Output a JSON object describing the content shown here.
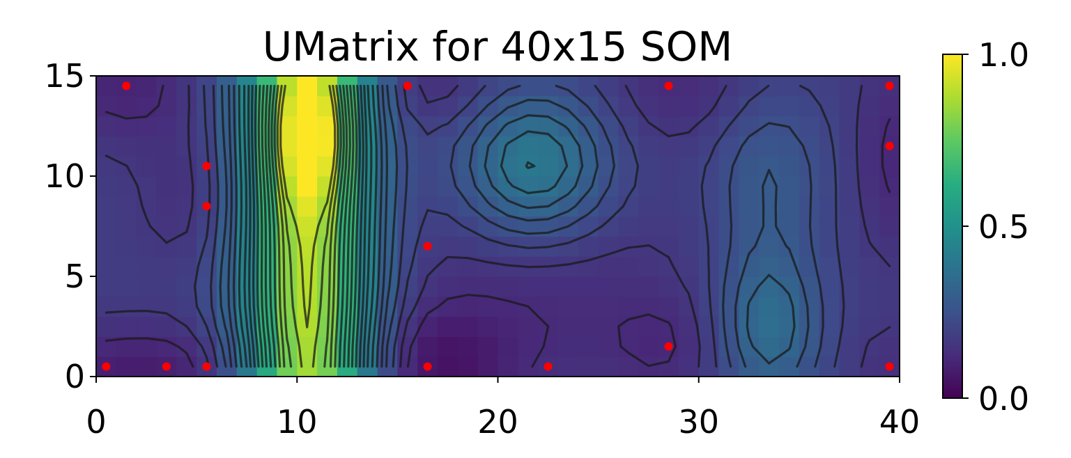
{
  "chart_data": {
    "type": "heatmap",
    "title": "UMatrix for 40x15 SOM",
    "xlabel": "",
    "ylabel": "",
    "xlim": [
      0,
      40
    ],
    "ylim": [
      0,
      15
    ],
    "x_ticks": [
      "0",
      "10",
      "20",
      "30",
      "40"
    ],
    "y_ticks": [
      "0",
      "5",
      "10",
      "15"
    ],
    "grid": false,
    "grid_size": {
      "cols": 40,
      "rows": 15
    },
    "colormap": "viridis",
    "colorbar": {
      "range": [
        0,
        1
      ],
      "ticks": [
        "0.0",
        "0.5",
        "1.0"
      ],
      "placement": "right"
    },
    "contour_color": "#1a1a1a",
    "umatrix_model": {
      "base": 0.18,
      "bumps": [
        {
          "cx": 10.5,
          "cy": 7.5,
          "sx": 2.2,
          "sy": 60,
          "amp": 0.72
        },
        {
          "cx": 10.6,
          "cy": 12.0,
          "sx": 1.2,
          "sy": 2.2,
          "amp": 0.22
        },
        {
          "cx": 21.8,
          "cy": 10.5,
          "sx": 2.6,
          "sy": 2.6,
          "amp": 0.24
        },
        {
          "cx": 33.5,
          "cy": 2.5,
          "sx": 1.8,
          "sy": 2.8,
          "amp": 0.18
        },
        {
          "cx": 33.5,
          "cy": 10.0,
          "sx": 2.0,
          "sy": 3.0,
          "amp": 0.1
        },
        {
          "cx": 1.5,
          "cy": 14.5,
          "sx": 2.5,
          "sy": 2.0,
          "amp": -0.08
        },
        {
          "cx": 2.5,
          "cy": 0.3,
          "sx": 5.0,
          "sy": 1.6,
          "amp": -0.1
        },
        {
          "cx": 5.0,
          "cy": 9.0,
          "sx": 2.0,
          "sy": 2.5,
          "amp": -0.05
        },
        {
          "cx": 17.0,
          "cy": 0.5,
          "sx": 2.5,
          "sy": 2.0,
          "amp": -0.11
        },
        {
          "cx": 16.5,
          "cy": 14.5,
          "sx": 2.2,
          "sy": 1.5,
          "amp": -0.06
        },
        {
          "cx": 22.0,
          "cy": 4.0,
          "sx": 5.0,
          "sy": 4.0,
          "amp": -0.06
        },
        {
          "cx": 29.0,
          "cy": 14.5,
          "sx": 2.5,
          "sy": 2.0,
          "amp": -0.06
        },
        {
          "cx": 28.5,
          "cy": 1.5,
          "sx": 2.0,
          "sy": 1.8,
          "amp": -0.05
        },
        {
          "cx": 39.5,
          "cy": 11.0,
          "sx": 1.2,
          "sy": 3.5,
          "amp": -0.07
        },
        {
          "cx": 39.5,
          "cy": 0.5,
          "sx": 1.5,
          "sy": 1.5,
          "amp": -0.04
        }
      ]
    },
    "contour_levels": [
      0.12,
      0.16,
      0.2,
      0.24,
      0.28,
      0.32,
      0.36,
      0.4,
      0.44,
      0.48,
      0.52,
      0.56,
      0.6,
      0.64,
      0.68,
      0.72,
      0.76,
      0.8,
      0.84,
      0.88
    ],
    "series": [
      {
        "type": "scatter",
        "color": "#ff0000",
        "points": [
          [
            0.5,
            0.5
          ],
          [
            3.5,
            0.5
          ],
          [
            5.5,
            0.5
          ],
          [
            16.5,
            0.5
          ],
          [
            22.5,
            0.5
          ],
          [
            39.5,
            0.5
          ],
          [
            28.5,
            1.5
          ],
          [
            16.5,
            6.5
          ],
          [
            5.5,
            8.5
          ],
          [
            5.5,
            10.5
          ],
          [
            39.5,
            11.5
          ],
          [
            1.5,
            14.5
          ],
          [
            15.5,
            14.5
          ],
          [
            28.5,
            14.5
          ],
          [
            39.5,
            14.5
          ]
        ]
      }
    ]
  }
}
